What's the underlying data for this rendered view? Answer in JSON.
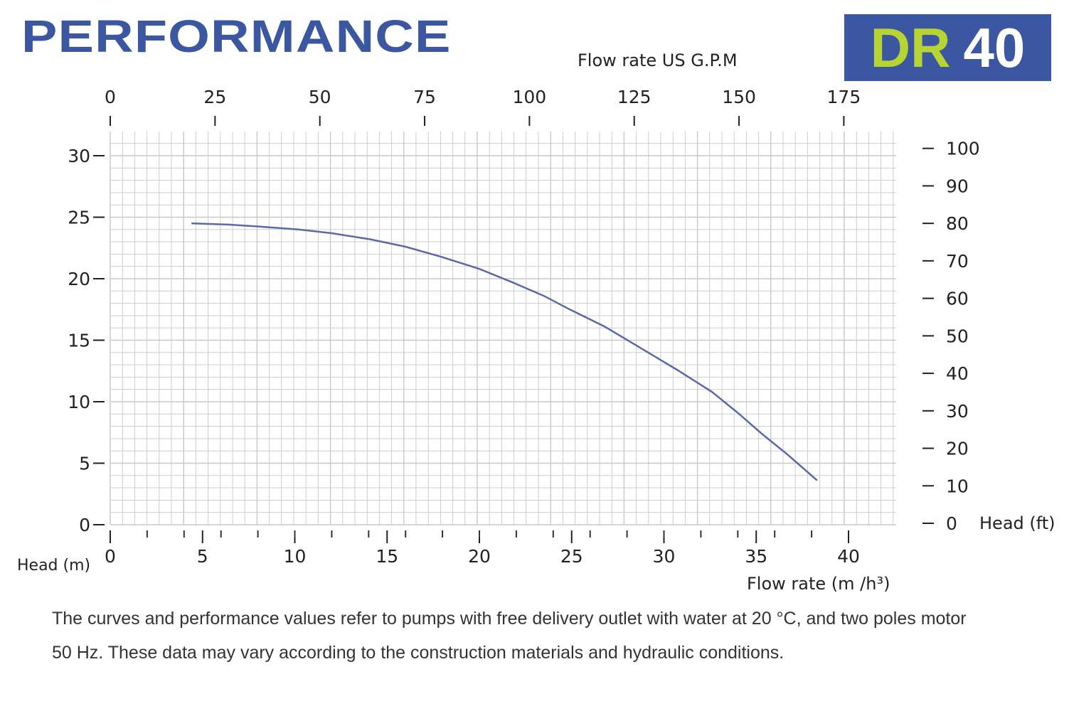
{
  "header": {
    "title": "PERFORMANCE",
    "model_prefix": "DR",
    "model_number": "40"
  },
  "colors": {
    "brand": "#3b57a2",
    "model_prefix": "#b7d432",
    "curve": "#5a6aa8",
    "grid": "#c8c8c8"
  },
  "chart_data": {
    "type": "line",
    "xlabel": "Flow rate  (m /h³)",
    "ylabel": "Head (m)",
    "x2label": "Flow rate US  G.P.M",
    "y2label": "Head (ft)",
    "xlim": [
      0,
      42.5
    ],
    "ylim": [
      0,
      32
    ],
    "x_ticks": [
      "0",
      "5",
      "10",
      "15",
      "20",
      "25",
      "30",
      "35",
      "40"
    ],
    "y_ticks": [
      "0",
      "5",
      "10",
      "15",
      "20",
      "25",
      "30"
    ],
    "x2_ticks": [
      "0",
      "25",
      "50",
      "75",
      "100",
      "125",
      "150",
      "175"
    ],
    "y2_ticks": [
      "0",
      "10",
      "20",
      "30",
      "40",
      "50",
      "60",
      "70",
      "80",
      "90",
      "100"
    ],
    "grid": true,
    "series": [
      {
        "x": [
          4.4,
          6.4,
          8,
          10.2,
          12,
          14.1,
          16,
          17.9,
          20,
          21.8,
          23.5,
          24.9,
          26.8,
          28.7,
          30.7,
          32.6,
          34,
          35.3,
          36.7,
          38.3
        ],
        "y": [
          24.5,
          24.4,
          24.25,
          24.0,
          23.7,
          23.2,
          22.6,
          21.8,
          20.8,
          19.7,
          18.6,
          17.5,
          16.1,
          14.4,
          12.6,
          10.8,
          9.1,
          7.4,
          5.7,
          3.6
        ]
      }
    ]
  },
  "footnote": "The curves and performance values refer to pumps with free delivery outlet with water at 20 °C, and two poles motor 50 Hz. These data may vary according to the construction materials and hydraulic conditions."
}
